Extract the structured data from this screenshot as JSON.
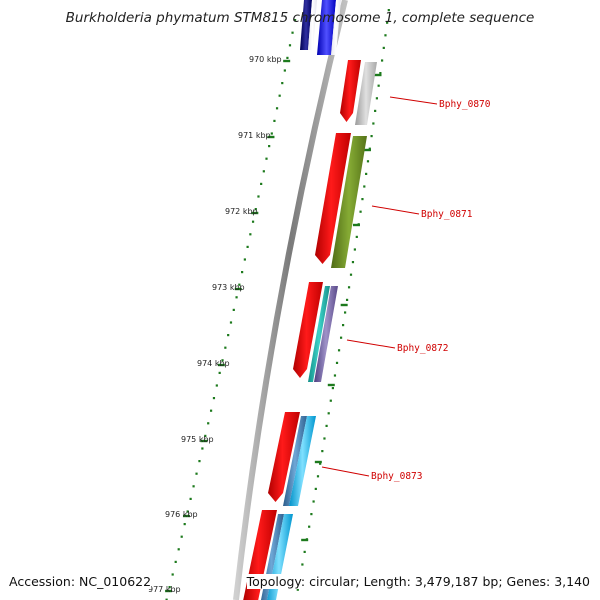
{
  "title": "Burkholderia phymatum STM815 chromosome 1, complete sequence",
  "footer": {
    "accession": "Accession: NC_010622",
    "summary": "Topology: circular; Length: 3,479,187 bp; Genes: 3,140"
  },
  "colors": {
    "backbone": "#8a8a8a",
    "tick": "#1d7a1d",
    "label_red": "#d00000",
    "cds_red": "#ff0000",
    "gray": "#bdbdbd",
    "olive": "#6b8e23",
    "teal": "#20b2aa",
    "purple": "#7b68a6",
    "steel": "#4682b4",
    "sky": "#00bfff",
    "blue": "#0000ff",
    "navy": "#000080"
  },
  "ticks": [
    {
      "label": "970 kbp"
    },
    {
      "label": "971 kbp"
    },
    {
      "label": "972 kbp"
    },
    {
      "label": "973 kbp"
    },
    {
      "label": "974 kbp"
    },
    {
      "label": "975 kbp"
    },
    {
      "label": "976 kbp"
    },
    {
      "label": "977 kbp"
    }
  ],
  "genes": [
    {
      "label": "Bphy_0870",
      "feature_colors": [
        "cds_red",
        "gray"
      ]
    },
    {
      "label": "Bphy_0871",
      "feature_colors": [
        "cds_red",
        "olive"
      ]
    },
    {
      "label": "Bphy_0872",
      "feature_colors": [
        "cds_red",
        "teal",
        "purple"
      ]
    },
    {
      "label": "Bphy_0873",
      "feature_colors": [
        "cds_red",
        "steel",
        "sky"
      ]
    }
  ]
}
